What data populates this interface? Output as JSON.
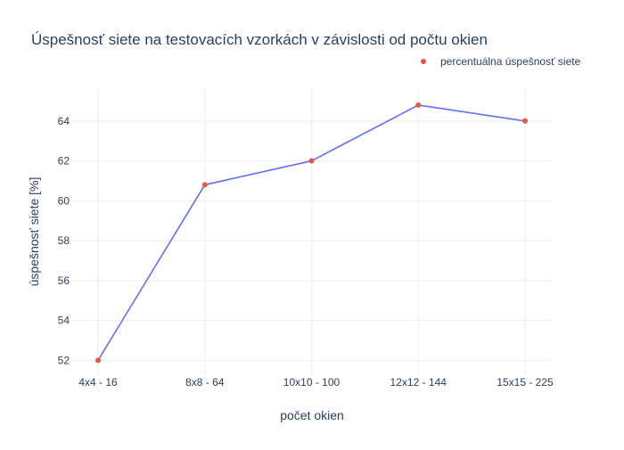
{
  "chart_data": {
    "type": "line",
    "title": "Úspešnosť siete na testovacích vzorkách v závislosti od počtu okien",
    "xlabel": "počet okien",
    "ylabel": "úspešnosť siete [%]",
    "categories": [
      "4x4 - 16",
      "8x8 - 64",
      "10x10 - 100",
      "12x12 - 144",
      "15x15 - 225"
    ],
    "series": [
      {
        "name": "percentuálna úspešnosť siete",
        "values": [
          52.0,
          60.8,
          62.0,
          64.8,
          64.0
        ],
        "line_color": "#636efa",
        "marker_color": "#ef553b"
      }
    ],
    "yticks": [
      52,
      54,
      56,
      58,
      60,
      62,
      64
    ],
    "ylim": [
      51.3,
      65.6
    ],
    "grid": true,
    "legend_position": "top-right"
  }
}
